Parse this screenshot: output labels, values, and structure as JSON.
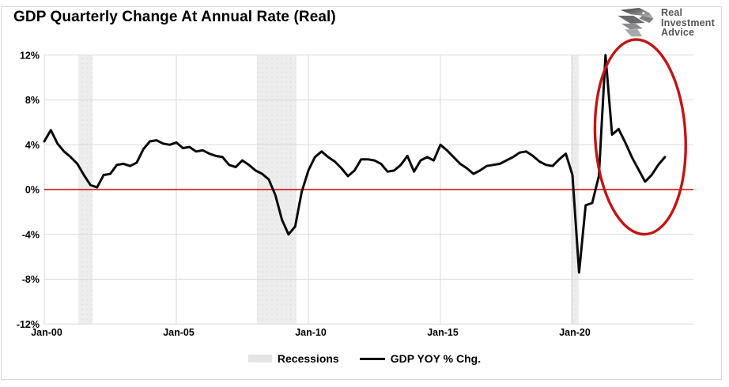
{
  "header": {
    "title": "GDP Quarterly Change At Annual Rate (Real)",
    "logo": {
      "line1": "Real",
      "line2": "Investment",
      "line3": "Advice"
    }
  },
  "legend": {
    "recessions_label": "Recessions",
    "series_label": "GDP YOY % Chg."
  },
  "colors": {
    "grid": "#d9d9d9",
    "recession_band": "#ededed",
    "recession_band_dot": "#e0e0e0",
    "line": "#0a0a0a",
    "zero_line": "#d40000",
    "ellipse": "#c41414",
    "legend_swatch": "#e4e4e4",
    "logo_text": "#55565a",
    "tick_text": "#000000"
  },
  "chart_data": {
    "type": "line",
    "title": "GDP Quarterly Change At Annual Rate (Real)",
    "unit": "%",
    "frequency": "quarterly",
    "start": "2000-Q1",
    "end": "2023-Q3",
    "xlabel": "",
    "ylabel": "",
    "ylim": [
      -12,
      12
    ],
    "xlim_years": [
      2000,
      2024.6
    ],
    "grid": true,
    "legend_position": "bottom",
    "x_tick_labels": [
      "Jan-00",
      "Jan-05",
      "Jan-10",
      "Jan-15",
      "Jan-20"
    ],
    "x_tick_years": [
      2000,
      2005,
      2010,
      2015,
      2020
    ],
    "y_tick_labels": [
      "12%",
      "8%",
      "4%",
      "0%",
      "-4%",
      "-8%",
      "-12%"
    ],
    "y_tick_values": [
      12,
      8,
      4,
      0,
      -4,
      -8,
      -12
    ],
    "series": [
      {
        "name": "GDP YOY % Chg.",
        "values": [
          4.3,
          5.3,
          4.1,
          3.4,
          2.9,
          2.3,
          1.3,
          0.4,
          0.2,
          1.3,
          1.4,
          2.2,
          2.3,
          2.1,
          2.4,
          3.6,
          4.3,
          4.4,
          4.1,
          4.0,
          4.2,
          3.7,
          3.8,
          3.4,
          3.5,
          3.2,
          3.0,
          2.9,
          2.2,
          2.0,
          2.6,
          2.2,
          1.7,
          1.4,
          0.9,
          -0.5,
          -2.7,
          -4.0,
          -3.3,
          -0.2,
          1.7,
          2.9,
          3.4,
          2.9,
          2.5,
          1.9,
          1.2,
          1.7,
          2.7,
          2.7,
          2.6,
          2.3,
          1.6,
          1.7,
          2.2,
          3.0,
          1.6,
          2.6,
          2.9,
          2.6,
          4.0,
          3.5,
          2.9,
          2.3,
          1.9,
          1.4,
          1.7,
          2.1,
          2.2,
          2.3,
          2.6,
          2.9,
          3.3,
          3.4,
          3.0,
          2.5,
          2.2,
          2.1,
          2.7,
          3.2,
          1.3,
          -7.4,
          -1.4,
          -1.2,
          1.2,
          12.0,
          4.9,
          5.4,
          4.2,
          2.9,
          1.8,
          0.7,
          1.3,
          2.2,
          2.9
        ]
      }
    ],
    "recessions": [
      {
        "start": 2001.29,
        "end": 2001.83
      },
      {
        "start": 2008.05,
        "end": 2009.55
      },
      {
        "start": 2019.94,
        "end": 2020.24
      }
    ],
    "annotation_ellipse": {
      "center_year": 2022.57,
      "center_value": 4.7,
      "radius_years": 1.71,
      "radius_value": 8.7
    }
  }
}
